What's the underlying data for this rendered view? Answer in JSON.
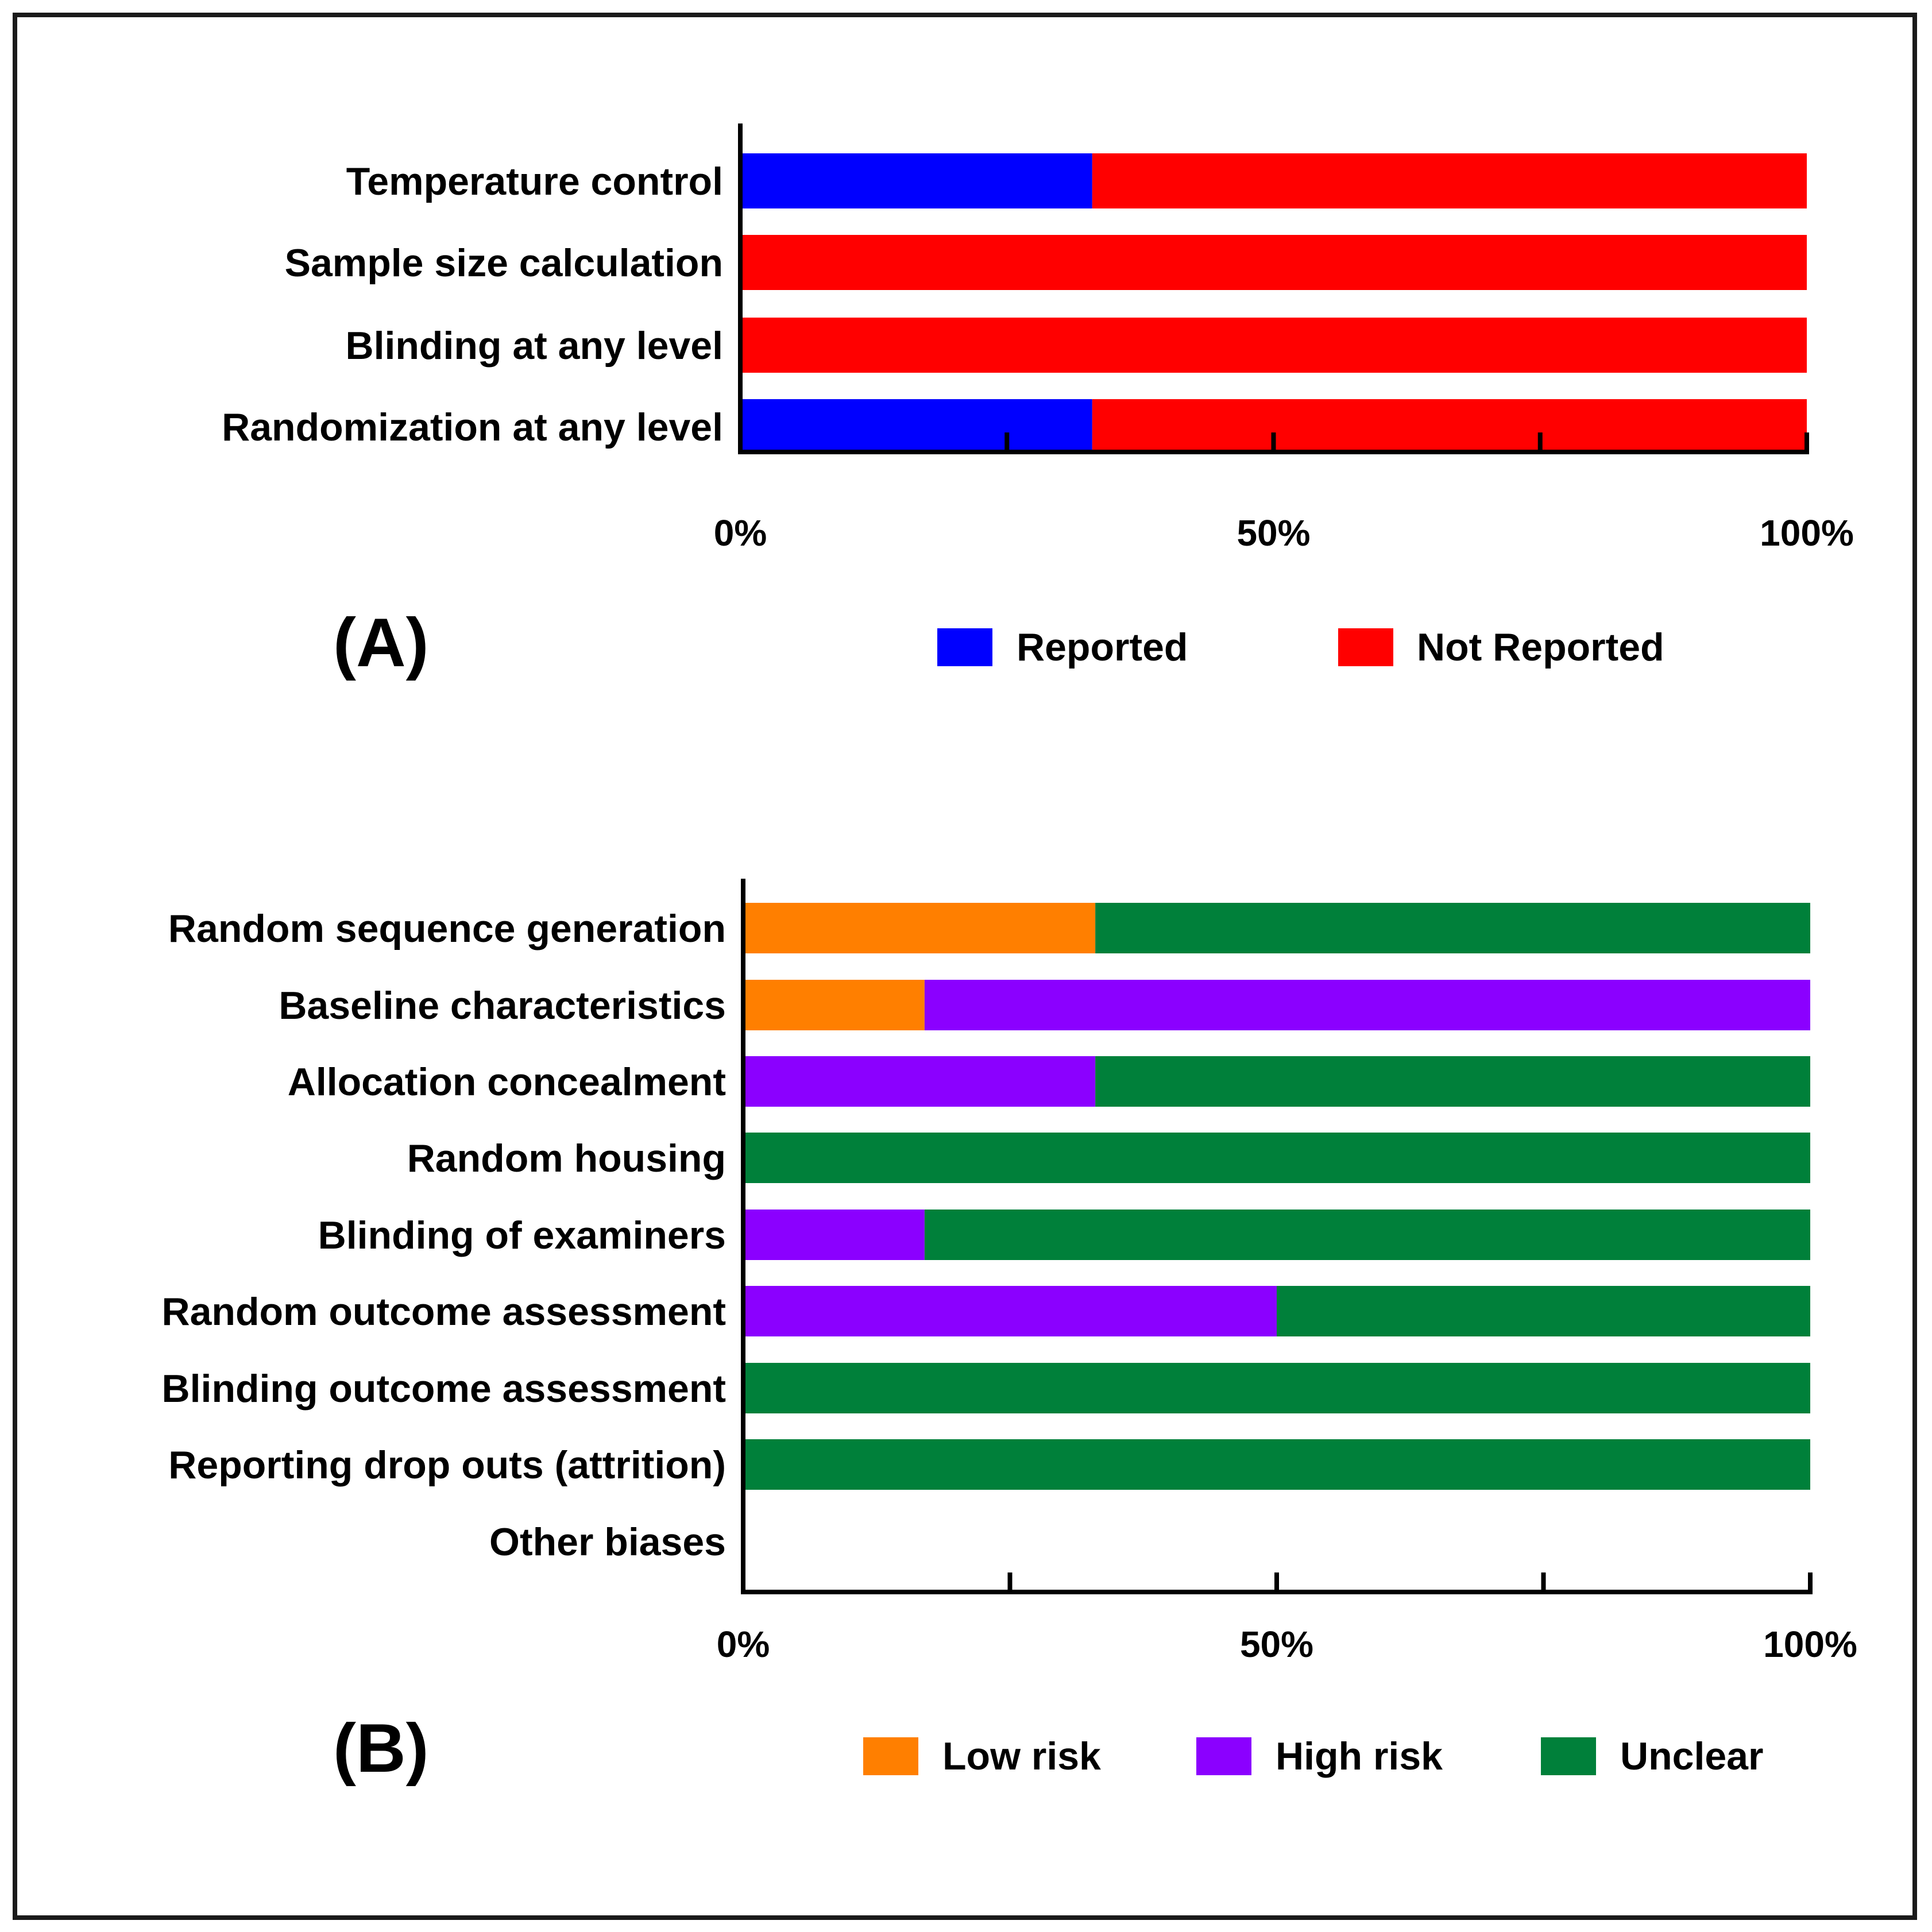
{
  "chart_data": [
    {
      "type": "bar",
      "orientation": "horizontal",
      "stacked": true,
      "panel_label": "(A)",
      "categories": [
        "Temperature control",
        "Sample size calculation",
        "Blinding at any level",
        "Randomization at any level"
      ],
      "series": [
        {
          "name": "Reported",
          "color": "#0000ff",
          "values": [
            33,
            0,
            0,
            33
          ]
        },
        {
          "name": "Not Reported",
          "color": "#ff0000",
          "values": [
            67,
            100,
            100,
            67
          ]
        }
      ],
      "xlim": [
        0,
        100
      ],
      "xticks": [
        0,
        25,
        50,
        75,
        100
      ],
      "xtick_labels": [
        "0%",
        "50%",
        "100%"
      ],
      "legend_position": "bottom"
    },
    {
      "type": "bar",
      "orientation": "horizontal",
      "stacked": true,
      "panel_label": "(B)",
      "categories": [
        "Random sequence generation",
        "Baseline characteristics",
        "Allocation concealment",
        "Random housing",
        "Blinding of examiners",
        "Random outcome assessment",
        "Blinding outcome assessment",
        "Reporting drop outs (attrition)",
        "Other biases"
      ],
      "series": [
        {
          "name": "Low risk",
          "color": "#ff7f00",
          "values": [
            33,
            17,
            0,
            0,
            0,
            0,
            0,
            0,
            0
          ]
        },
        {
          "name": "High risk",
          "color": "#8b00ff",
          "values": [
            0,
            83,
            33,
            0,
            17,
            50,
            0,
            0,
            0
          ]
        },
        {
          "name": "Unclear",
          "color": "#00803a",
          "values": [
            67,
            0,
            67,
            100,
            83,
            50,
            100,
            100,
            0
          ]
        }
      ],
      "xlim": [
        0,
        100
      ],
      "xticks": [
        0,
        25,
        50,
        75,
        100
      ],
      "xtick_labels": [
        "0%",
        "50%",
        "100%"
      ],
      "legend_position": "bottom"
    }
  ]
}
